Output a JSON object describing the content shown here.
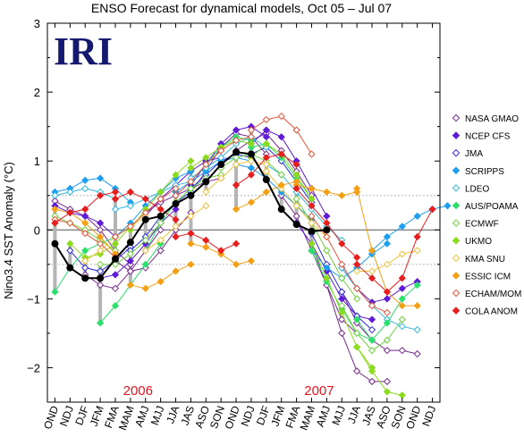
{
  "chart_data": {
    "type": "line",
    "title": "ENSO Forecast for dynamical models, Oct 05 – Jul 07",
    "logo": "IRI",
    "ylabel": "Nino3.4 SST Anomaly (°C)",
    "ylim": [
      -2.5,
      3
    ],
    "yticks": [
      "3",
      "2",
      "1",
      "0",
      "−1",
      "−2"
    ],
    "yticks_values": [
      3,
      2,
      1,
      0,
      -1,
      -2
    ],
    "x_categories": [
      "OND",
      "NDJ",
      "DJF",
      "JFM",
      "FMA",
      "MAM",
      "AMJ",
      "MJJ",
      "JJA",
      "JAS",
      "ASO",
      "SON",
      "OND",
      "NDJ",
      "DJF",
      "JFM",
      "FMA",
      "MAM",
      "AMJ",
      "MJJ",
      "JJA",
      "JAS",
      "ASO",
      "SON",
      "OND",
      "NDJ"
    ],
    "year_labels": [
      {
        "text": "2006",
        "category_index": 5.5
      },
      {
        "text": "2007",
        "category_index": 17.5
      }
    ],
    "reference_lines": [
      0.5,
      -0.5
    ],
    "observed": {
      "name": "Observed",
      "color": "#000000",
      "values": [
        -0.2,
        -0.55,
        -0.7,
        -0.7,
        -0.42,
        -0.18,
        0.15,
        0.2,
        0.38,
        0.5,
        0.7,
        0.95,
        1.13,
        1.1,
        0.73,
        0.3,
        0.08,
        -0.02,
        0.0
      ]
    },
    "legend": [
      {
        "name": "NASA GMAO",
        "color": "#7a2a90",
        "marker": "diamond-open"
      },
      {
        "name": "NCEP CFS",
        "color": "#5f1bd8",
        "marker": "diamond"
      },
      {
        "name": "JMA",
        "color": "#2d2ad8",
        "marker": "diamond-open"
      },
      {
        "name": "SCRIPPS",
        "color": "#1e9ff0",
        "marker": "diamond"
      },
      {
        "name": "LDEO",
        "color": "#33b8e0",
        "marker": "diamond-open"
      },
      {
        "name": "AUS/POAMA",
        "color": "#2adf6b",
        "marker": "diamond"
      },
      {
        "name": "ECMWF",
        "color": "#6ed43c",
        "marker": "diamond-open"
      },
      {
        "name": "UKMO",
        "color": "#8cdc1e",
        "marker": "diamond"
      },
      {
        "name": "KMA SNU",
        "color": "#f0c23c",
        "marker": "diamond-open"
      },
      {
        "name": "ESSIC ICM",
        "color": "#f5a014",
        "marker": "diamond"
      },
      {
        "name": "ECHAM/MOM",
        "color": "#e8553a",
        "marker": "diamond-open"
      },
      {
        "name": "COLA ANOM",
        "color": "#e81e1e",
        "marker": "diamond"
      }
    ],
    "forecasts": [
      {
        "model": "NASA GMAO",
        "start": 0,
        "values": [
          0.42,
          0.3,
          0.2,
          0.0,
          -0.3,
          -0.5
        ]
      },
      {
        "model": "NASA GMAO",
        "start": 2,
        "values": [
          -0.65,
          -0.8,
          -0.85,
          -0.6,
          -0.3,
          0.0
        ]
      },
      {
        "model": "NASA GMAO",
        "start": 4,
        "values": [
          -0.45,
          -0.6,
          -0.55,
          -0.3,
          0.0,
          0.25
        ]
      },
      {
        "model": "NASA GMAO",
        "start": 6,
        "values": [
          0.25,
          0.4,
          0.5,
          0.6,
          0.7,
          0.75
        ]
      },
      {
        "model": "NASA GMAO",
        "start": 9,
        "values": [
          0.55,
          0.85,
          1.2,
          1.4,
          1.35,
          1.1
        ]
      },
      {
        "model": "NASA GMAO",
        "start": 12,
        "values": [
          1.15,
          1.3,
          1.4,
          1.15,
          0.85,
          0.5
        ]
      },
      {
        "model": "NASA GMAO",
        "start": 15,
        "values": [
          0.5,
          0.2,
          -0.3,
          -0.8,
          -1.3,
          -1.5
        ]
      },
      {
        "model": "NASA GMAO",
        "start": 17,
        "values": [
          -0.2,
          -0.8,
          -1.5,
          -2.05,
          -2.2,
          -2.2
        ]
      },
      {
        "model": "NASA GMAO",
        "start": 19,
        "values": [
          -0.9,
          -1.35,
          -1.6,
          -1.75,
          -1.75,
          -1.8
        ]
      },
      {
        "model": "NCEP CFS",
        "start": 0,
        "values": [
          0.35,
          0.25,
          0.2,
          0.1,
          -0.1
        ]
      },
      {
        "model": "NCEP CFS",
        "start": 3,
        "values": [
          -0.7,
          -0.65,
          -0.45,
          -0.2,
          0.1,
          0.3
        ]
      },
      {
        "model": "NCEP CFS",
        "start": 6,
        "values": [
          0.2,
          0.45,
          0.65,
          0.85,
          1.0,
          1.05
        ]
      },
      {
        "model": "NCEP CFS",
        "start": 9,
        "values": [
          0.65,
          0.95,
          1.25,
          1.45,
          1.5,
          1.35
        ]
      },
      {
        "model": "NCEP CFS",
        "start": 13,
        "values": [
          1.25,
          1.45,
          1.35,
          1.0,
          0.6,
          0.2
        ]
      },
      {
        "model": "NCEP CFS",
        "start": 16,
        "values": [
          0.1,
          -0.2,
          -0.6,
          -1.0,
          -1.25,
          -1.3
        ]
      },
      {
        "model": "NCEP CFS",
        "start": 19,
        "values": [
          -0.55,
          -0.85,
          -1.05,
          -1.0,
          -0.85,
          -0.75
        ]
      },
      {
        "model": "JMA",
        "start": 1,
        "values": [
          -0.3,
          -0.55,
          -0.6,
          -0.45,
          -0.25
        ]
      },
      {
        "model": "JMA",
        "start": 5,
        "values": [
          -0.3,
          -0.1,
          0.2,
          0.4,
          0.55
        ]
      },
      {
        "model": "JMA",
        "start": 9,
        "values": [
          0.6,
          0.8,
          1.0,
          1.1,
          1.05
        ]
      },
      {
        "model": "JMA",
        "start": 13,
        "values": [
          1.1,
          1.2,
          1.0,
          0.7,
          0.4
        ]
      },
      {
        "model": "JMA",
        "start": 17,
        "values": [
          -0.05,
          -0.5,
          -0.9,
          -1.25,
          -1.45
        ]
      },
      {
        "model": "SCRIPPS",
        "start": 0,
        "values": [
          0.55,
          0.6,
          0.72,
          0.75,
          0.6,
          0.4
        ]
      },
      {
        "model": "SCRIPPS",
        "start": 4,
        "values": [
          -0.1,
          0.1,
          0.35,
          0.55,
          0.75,
          0.85
        ]
      },
      {
        "model": "SCRIPPS",
        "start": 8,
        "values": [
          0.55,
          0.7,
          0.85,
          1.0,
          1.05,
          1.0
        ]
      },
      {
        "model": "SCRIPPS",
        "start": 12,
        "values": [
          0.95,
          0.9,
          0.75,
          0.55,
          0.35,
          0.15
        ]
      },
      {
        "model": "SCRIPPS",
        "start": 17,
        "values": [
          -0.3,
          -0.55,
          -0.7,
          -0.55,
          -0.35,
          -0.2
        ]
      },
      {
        "model": "SCRIPPS",
        "start": 21,
        "values": [
          -0.3,
          -0.1,
          0.05,
          0.2,
          0.3,
          0.35
        ]
      },
      {
        "model": "LDEO",
        "start": 0,
        "values": [
          0.5,
          0.55,
          0.6,
          0.55,
          0.45
        ]
      },
      {
        "model": "LDEO",
        "start": 4,
        "values": [
          0.3,
          0.35,
          0.45,
          0.55,
          0.65,
          0.7
        ]
      },
      {
        "model": "LDEO",
        "start": 9,
        "values": [
          0.75,
          0.9,
          1.05,
          1.25,
          1.35,
          1.2
        ]
      },
      {
        "model": "LDEO",
        "start": 14,
        "values": [
          0.95,
          0.8,
          0.55,
          0.3,
          0.05,
          -0.15
        ]
      },
      {
        "model": "LDEO",
        "start": 19,
        "values": [
          -0.55,
          -0.85,
          -1.1,
          -1.3,
          -1.4,
          -1.45
        ]
      },
      {
        "model": "AUS/POAMA",
        "start": 0,
        "values": [
          -0.9,
          -0.55,
          -0.3,
          -0.2,
          -0.1
        ]
      },
      {
        "model": "AUS/POAMA",
        "start": 3,
        "values": [
          -1.35,
          -1.1,
          -0.8,
          -0.5,
          -0.2
        ]
      },
      {
        "model": "AUS/POAMA",
        "start": 6,
        "values": [
          -0.3,
          0.1,
          0.4,
          0.6,
          0.75
        ]
      },
      {
        "model": "AUS/POAMA",
        "start": 9,
        "values": [
          0.7,
          0.95,
          1.2,
          1.35,
          1.3
        ]
      },
      {
        "model": "AUS/POAMA",
        "start": 13,
        "values": [
          1.2,
          1.25,
          1.05,
          0.75,
          0.45
        ]
      },
      {
        "model": "AUS/POAMA",
        "start": 17,
        "values": [
          -0.3,
          -0.75,
          -1.15,
          -1.5,
          -1.6
        ]
      },
      {
        "model": "AUS/POAMA",
        "start": 20,
        "values": [
          -1.3,
          -1.6,
          -1.35,
          -1.0,
          -0.8
        ]
      },
      {
        "model": "ECMWF",
        "start": 0,
        "values": [
          0.2,
          0.1,
          0.0,
          -0.15,
          -0.3
        ]
      },
      {
        "model": "ECMWF",
        "start": 3,
        "values": [
          -0.5,
          -0.5,
          -0.35,
          -0.15,
          0.1
        ]
      },
      {
        "model": "ECMWF",
        "start": 7,
        "values": [
          0.2,
          0.4,
          0.6,
          0.75,
          0.8
        ]
      },
      {
        "model": "ECMWF",
        "start": 11,
        "values": [
          0.9,
          1.05,
          1.1,
          1.0,
          0.8
        ]
      },
      {
        "model": "ECMWF",
        "start": 16,
        "values": [
          0.45,
          0.1,
          -0.3,
          -0.7,
          -1.0
        ]
      },
      {
        "model": "ECMWF",
        "start": 19,
        "values": [
          -1.1,
          -1.5,
          -1.75,
          -1.6,
          -1.3
        ]
      },
      {
        "model": "UKMO",
        "start": 1,
        "values": [
          -0.2,
          -0.4,
          -0.35,
          -0.2,
          0.05
        ]
      },
      {
        "model": "UKMO",
        "start": 5,
        "values": [
          0.0,
          0.3,
          0.55,
          0.8,
          1.0
        ]
      },
      {
        "model": "UKMO",
        "start": 9,
        "values": [
          0.9,
          1.05,
          1.2,
          1.3,
          1.25
        ]
      },
      {
        "model": "UKMO",
        "start": 13,
        "values": [
          1.05,
          1.25,
          1.1,
          0.8,
          0.45
        ]
      },
      {
        "model": "UKMO",
        "start": 17,
        "values": [
          -0.2,
          -0.7,
          -1.2,
          -1.7,
          -2.0
        ]
      },
      {
        "model": "UKMO",
        "start": 20,
        "values": [
          -1.7,
          -2.05,
          -2.35,
          -2.4
        ]
      },
      {
        "model": "KMA SNU",
        "start": 2,
        "values": [
          -0.45,
          -0.3,
          -0.1,
          0.05,
          0.2
        ]
      },
      {
        "model": "KMA SNU",
        "start": 6,
        "values": [
          -0.3,
          -0.15,
          0.05,
          0.2,
          0.35
        ]
      },
      {
        "model": "KMA SNU",
        "start": 10,
        "values": [
          0.55,
          0.75,
          0.95,
          1.0,
          0.95
        ]
      },
      {
        "model": "KMA SNU",
        "start": 14,
        "values": [
          0.85,
          0.6,
          0.35,
          0.1,
          -0.1
        ]
      },
      {
        "model": "KMA SNU",
        "start": 20,
        "values": [
          -0.6,
          -0.6,
          -0.5,
          -0.35,
          -0.3
        ]
      },
      {
        "model": "ESSIC ICM",
        "start": 0,
        "values": [
          0.3,
          0.25,
          0.1,
          -0.1,
          -0.35
        ]
      },
      {
        "model": "ESSIC ICM",
        "start": 5,
        "values": [
          -0.8,
          -0.85,
          -0.75,
          -0.6,
          -0.5
        ]
      },
      {
        "model": "ESSIC ICM",
        "start": 9,
        "values": [
          -0.2,
          -0.25,
          -0.35,
          -0.5,
          -0.45
        ]
      },
      {
        "model": "ESSIC ICM",
        "start": 12,
        "values": [
          0.3,
          0.4,
          0.55,
          0.65,
          0.7
        ]
      },
      {
        "model": "ESSIC ICM",
        "start": 16,
        "values": [
          0.65,
          0.6,
          0.55,
          0.5,
          0.55
        ]
      },
      {
        "model": "ESSIC ICM",
        "start": 20,
        "values": [
          0.6,
          -0.3,
          -0.9,
          -1.1,
          -1.1
        ]
      },
      {
        "model": "ECHAM/MOM",
        "start": 0,
        "values": [
          0.15,
          0.1,
          -0.05,
          -0.2,
          -0.4
        ]
      },
      {
        "model": "ECHAM/MOM",
        "start": 4,
        "values": [
          -0.1,
          0.05,
          0.25,
          0.45,
          0.6
        ]
      },
      {
        "model": "ECHAM/MOM",
        "start": 8,
        "values": [
          0.5,
          0.7,
          0.95,
          1.15,
          1.3,
          1.35
        ]
      },
      {
        "model": "ECHAM/MOM",
        "start": 13,
        "values": [
          1.45,
          1.6,
          1.65,
          1.45,
          1.1
        ]
      },
      {
        "model": "ECHAM/MOM",
        "start": 17,
        "values": [
          0.2,
          -0.1,
          -0.5,
          -0.85,
          -1.1,
          -1.2
        ]
      },
      {
        "model": "COLA ANOM",
        "start": 0,
        "values": [
          0.1,
          0.25,
          0.3,
          0.5,
          0.55
        ]
      },
      {
        "model": "COLA ANOM",
        "start": 4,
        "values": [
          0.45,
          0.55,
          0.45,
          0.3,
          0.15
        ]
      },
      {
        "model": "COLA ANOM",
        "start": 8,
        "values": [
          -0.1,
          -0.05,
          -0.15,
          -0.3,
          -0.2
        ]
      },
      {
        "model": "COLA ANOM",
        "start": 12,
        "values": [
          0.65,
          0.8,
          1.05,
          1.1,
          0.95
        ]
      },
      {
        "model": "COLA ANOM",
        "start": 16,
        "values": [
          0.6,
          0.35,
          0.1,
          -0.2,
          -0.4
        ]
      },
      {
        "model": "COLA ANOM",
        "start": 20,
        "values": [
          -0.5,
          -0.7,
          -0.9,
          -0.7,
          -0.1,
          0.3
        ]
      }
    ]
  }
}
